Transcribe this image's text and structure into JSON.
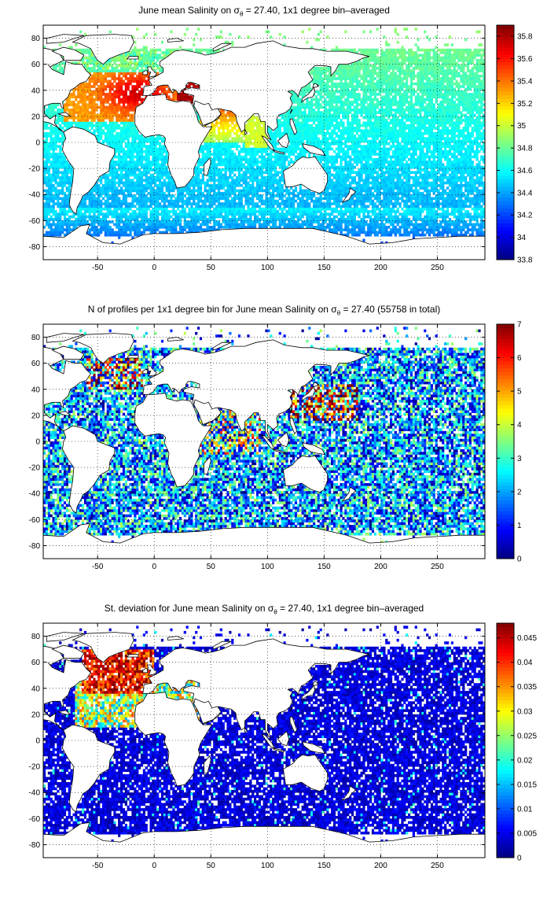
{
  "panels": [
    {
      "id": "salinity",
      "title_pre": "June mean Salinity on σ",
      "title_sub": "θ",
      "title_post": " = 27.40, 1x1 degree bin–averaged",
      "colorbar": {
        "min": 33.8,
        "max": 35.9,
        "ticks": [
          "33.8",
          "34",
          "34.2",
          "34.4",
          "34.6",
          "34.8",
          "35",
          "35.2",
          "35.4",
          "35.6",
          "35.8"
        ],
        "tick_values": [
          33.8,
          34.0,
          34.2,
          34.4,
          34.6,
          34.8,
          35.0,
          35.2,
          35.4,
          35.6,
          35.8
        ]
      }
    },
    {
      "id": "profiles",
      "title_pre": "N of profiles per 1x1 degree bin for June mean Salinity on σ",
      "title_sub": "θ",
      "title_post": " = 27.40 (55758 in total)",
      "colorbar": {
        "min": 0,
        "max": 7,
        "ticks": [
          "0",
          "1",
          "2",
          "3",
          "4",
          "5",
          "6",
          "7"
        ],
        "tick_values": [
          0,
          1,
          2,
          3,
          4,
          5,
          6,
          7
        ]
      }
    },
    {
      "id": "stdev",
      "title_pre": "St. deviation for June mean Salinity on σ",
      "title_sub": "θ",
      "title_post": " = 27.40, 1x1 degree bin–averaged",
      "colorbar": {
        "min": 0,
        "max": 0.048,
        "ticks": [
          "0",
          "0.005",
          "0.01",
          "0.015",
          "0.02",
          "0.025",
          "0.03",
          "0.035",
          "0.04",
          "0.045"
        ],
        "tick_values": [
          0,
          0.005,
          0.01,
          0.015,
          0.02,
          0.025,
          0.03,
          0.035,
          0.04,
          0.045
        ]
      }
    }
  ],
  "axes": {
    "x_range": [
      -98,
      292
    ],
    "y_range": [
      -90,
      90
    ],
    "x_ticks": [
      "-50",
      "0",
      "50",
      "100",
      "150",
      "200",
      "250"
    ],
    "x_tick_values": [
      -50,
      0,
      50,
      100,
      150,
      200,
      250
    ],
    "y_ticks": [
      "80",
      "60",
      "40",
      "20",
      "0",
      "-20",
      "-40",
      "-60",
      "-80"
    ],
    "y_tick_values": [
      80,
      60,
      40,
      20,
      0,
      -20,
      -40,
      -60,
      -80
    ],
    "grid": "dotted"
  },
  "colors": {
    "coastline": "#000000",
    "grid": "#000000",
    "background": "#ffffff"
  }
}
